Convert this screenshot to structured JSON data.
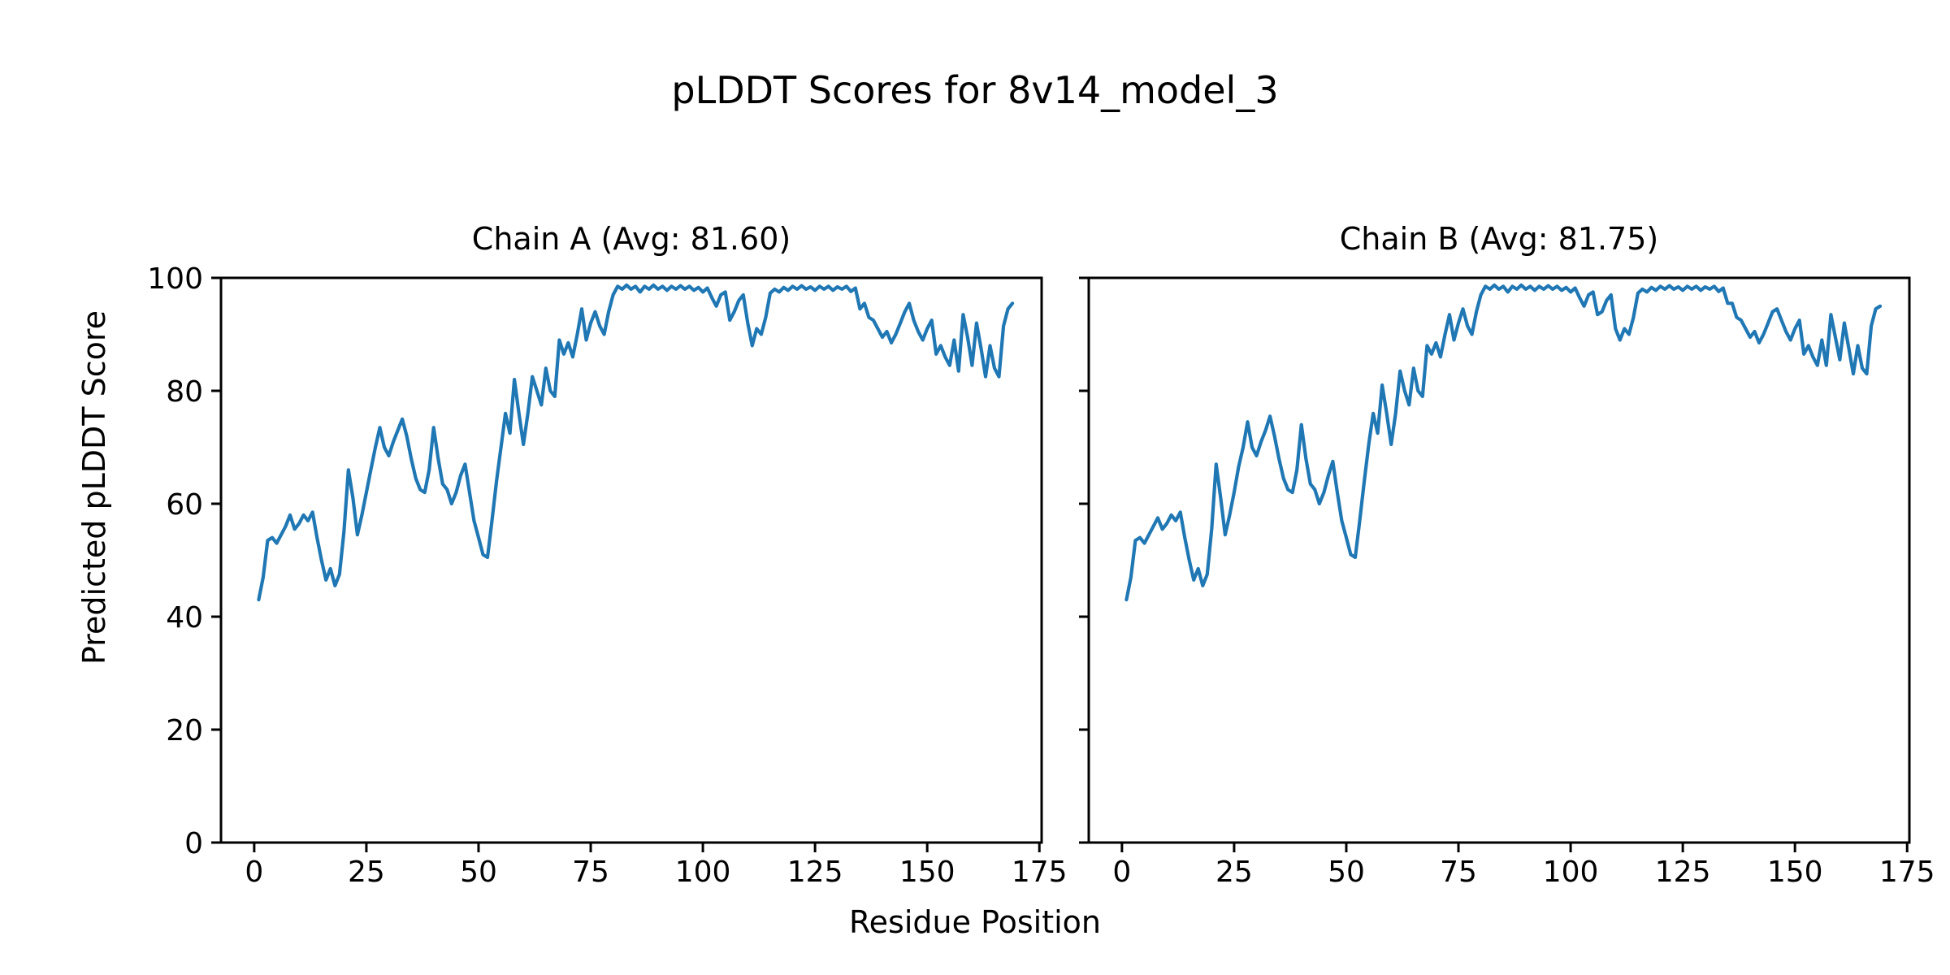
{
  "figure": {
    "suptitle": "pLDDT Scores for 8v14_model_3",
    "xlabel": "Residue Position",
    "ylabel": "Predicted pLDDT Score",
    "background_color": "#ffffff",
    "text_color": "#000000"
  },
  "chart_data": [
    {
      "type": "line",
      "title": "Chain A (Avg: 81.60)",
      "series_name": "Chain A pLDDT",
      "avg": 81.6,
      "line_color": "#1f77b4",
      "grid": false,
      "legend": "none",
      "x_start": 1,
      "x_step": 1,
      "xlim": [
        -7.4,
        175.5
      ],
      "ylim": [
        0,
        100
      ],
      "xticks": [
        0,
        25,
        50,
        75,
        100,
        125,
        150,
        175
      ],
      "yticks": [
        0,
        20,
        40,
        60,
        80,
        100
      ],
      "show_ytick_labels": true,
      "values": [
        43,
        47,
        53.5,
        54,
        53,
        54.5,
        56,
        58,
        55.5,
        56.5,
        58,
        57,
        58.5,
        54,
        50,
        46.5,
        48.5,
        45.5,
        47.5,
        55,
        66,
        61,
        54.5,
        58,
        62,
        66,
        70,
        73.5,
        70,
        68.5,
        71,
        73,
        75,
        72,
        68,
        64.5,
        62.5,
        62,
        66,
        73.5,
        68,
        63.5,
        62.5,
        60,
        62,
        65,
        67,
        62,
        57,
        54,
        51,
        50.5,
        57,
        64,
        70,
        76,
        72.5,
        82,
        76,
        70.5,
        76,
        82.5,
        80,
        77.5,
        84,
        80,
        79,
        89,
        86.5,
        88.5,
        86,
        90,
        94.5,
        89,
        92,
        94,
        91.5,
        90,
        94,
        97,
        98.5,
        98,
        98.7,
        98,
        98.5,
        97.5,
        98.5,
        98,
        98.7,
        98,
        98.5,
        97.8,
        98.5,
        98,
        98.6,
        98,
        98.5,
        97.8,
        98.3,
        97.5,
        98.2,
        96.5,
        95,
        97,
        97.5,
        92.5,
        94,
        96,
        97,
        92,
        88,
        91,
        90,
        93,
        97.3,
        98,
        97.5,
        98.3,
        97.8,
        98.5,
        98,
        98.6,
        98,
        98.4,
        97.8,
        98.5,
        98,
        98.5,
        97.8,
        98.4,
        98,
        98.5,
        97.6,
        98.2,
        94.5,
        95.5,
        93,
        92.5,
        91,
        89.5,
        90.5,
        88.5,
        90,
        92,
        94,
        95.5,
        92.5,
        90.5,
        89,
        91,
        92.5,
        86.5,
        88,
        86,
        84.5,
        89,
        83.5,
        93.5,
        89.5,
        84.5,
        92,
        87.5,
        82.5,
        88,
        84,
        82.5,
        91.5,
        94.5,
        95.5
      ]
    },
    {
      "type": "line",
      "title": "Chain B (Avg: 81.75)",
      "series_name": "Chain B pLDDT",
      "avg": 81.75,
      "line_color": "#1f77b4",
      "grid": false,
      "legend": "none",
      "x_start": 1,
      "x_step": 1,
      "xlim": [
        -7.4,
        175.5
      ],
      "ylim": [
        0,
        100
      ],
      "xticks": [
        0,
        25,
        50,
        75,
        100,
        125,
        150,
        175
      ],
      "yticks": [
        0,
        20,
        40,
        60,
        80,
        100
      ],
      "show_ytick_labels": false,
      "values": [
        43,
        47,
        53.5,
        54,
        53,
        54.5,
        56,
        57.5,
        55.5,
        56.5,
        58,
        57,
        58.5,
        54,
        50,
        46.5,
        48.5,
        45.5,
        47.5,
        55.5,
        67,
        61,
        54.5,
        58,
        62,
        66.5,
        70,
        74.5,
        70,
        68.5,
        71,
        73,
        75.5,
        72,
        68,
        64.5,
        62.5,
        62,
        66,
        74,
        68,
        63.5,
        62.5,
        60,
        62,
        65,
        67.5,
        62,
        57,
        54,
        51,
        50.5,
        57,
        64,
        70.5,
        76,
        72.5,
        81,
        76,
        70.5,
        76,
        83.5,
        80,
        77.5,
        84,
        80,
        79,
        88,
        86.5,
        88.5,
        86,
        90,
        93.5,
        89,
        92,
        94.5,
        91.5,
        90,
        94,
        97,
        98.5,
        98,
        98.7,
        98,
        98.5,
        97.5,
        98.5,
        98,
        98.7,
        98,
        98.5,
        97.8,
        98.5,
        98,
        98.6,
        98,
        98.5,
        97.8,
        98.3,
        97.5,
        98.2,
        96.5,
        95,
        97,
        97.5,
        93.5,
        94,
        96,
        97,
        91,
        89,
        91,
        90,
        93,
        97.3,
        98,
        97.5,
        98.3,
        97.8,
        98.5,
        98,
        98.6,
        98,
        98.4,
        97.8,
        98.5,
        98,
        98.5,
        97.8,
        98.4,
        98,
        98.5,
        97.6,
        98.2,
        95.5,
        95.5,
        93,
        92.5,
        91,
        89.5,
        90.5,
        88.5,
        90,
        92,
        94,
        94.5,
        92.5,
        90.5,
        89,
        91,
        92.5,
        86.5,
        88,
        86,
        84.5,
        89,
        84.5,
        93.5,
        89.5,
        85.5,
        92,
        87.5,
        83,
        88,
        84,
        83,
        91.5,
        94.5,
        95
      ]
    }
  ]
}
